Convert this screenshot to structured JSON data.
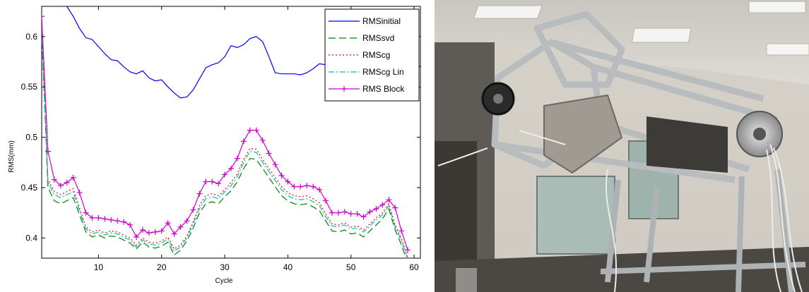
{
  "chart_data": {
    "type": "line",
    "xlabel": "Cycle",
    "ylabel": "RMS(mm)",
    "xlim": [
      1,
      61
    ],
    "ylim": [
      0.38,
      0.63
    ],
    "xticks": [
      10,
      20,
      30,
      40,
      50,
      60
    ],
    "yticks": [
      0.4,
      0.45,
      0.5,
      0.55,
      0.6
    ],
    "grid": false,
    "legend_position": "top-right",
    "series": [
      {
        "name": "RMSinitial",
        "color": "#0000ff",
        "dash": "solid",
        "marker": "none",
        "points": [
          [
            5,
            0.63
          ],
          [
            6,
            0.62
          ],
          [
            7,
            0.608
          ],
          [
            8,
            0.599
          ],
          [
            9,
            0.597
          ],
          [
            10,
            0.59
          ],
          [
            11,
            0.583
          ],
          [
            12,
            0.577
          ],
          [
            13,
            0.576
          ],
          [
            14,
            0.57
          ],
          [
            15,
            0.565
          ],
          [
            16,
            0.563
          ],
          [
            17,
            0.566
          ],
          [
            18,
            0.559
          ],
          [
            19,
            0.556
          ],
          [
            20,
            0.557
          ],
          [
            21,
            0.55
          ],
          [
            22,
            0.544
          ],
          [
            23,
            0.539
          ],
          [
            24,
            0.54
          ],
          [
            25,
            0.547
          ],
          [
            26,
            0.558
          ],
          [
            27,
            0.569
          ],
          [
            28,
            0.572
          ],
          [
            29,
            0.574
          ],
          [
            30,
            0.58
          ],
          [
            31,
            0.591
          ],
          [
            32,
            0.589
          ],
          [
            33,
            0.592
          ],
          [
            34,
            0.598
          ],
          [
            35,
            0.6
          ],
          [
            36,
            0.595
          ],
          [
            37,
            0.58
          ],
          [
            38,
            0.564
          ],
          [
            39,
            0.563
          ],
          [
            40,
            0.563
          ],
          [
            41,
            0.563
          ],
          [
            42,
            0.562
          ],
          [
            43,
            0.564
          ],
          [
            44,
            0.568
          ],
          [
            45,
            0.573
          ],
          [
            46,
            0.572
          ],
          [
            47,
            0.568
          ],
          [
            48,
            0.566
          ],
          [
            49,
            0.566
          ],
          [
            50,
            0.566
          ],
          [
            51,
            0.565
          ],
          [
            52,
            0.566
          ],
          [
            53,
            0.567
          ],
          [
            54,
            0.57
          ],
          [
            55,
            0.572
          ],
          [
            56,
            0.569
          ],
          [
            57,
            0.567
          ],
          [
            58,
            0.566
          ],
          [
            59,
            0.564
          ],
          [
            60,
            0.566
          ],
          [
            61,
            0.571
          ]
        ]
      },
      {
        "name": "RMSsvd",
        "color": "#008000",
        "dash": "dash",
        "marker": "none",
        "points": [
          [
            1,
            0.605
          ],
          [
            2,
            0.45
          ],
          [
            3,
            0.437
          ],
          [
            4,
            0.434
          ],
          [
            5,
            0.437
          ],
          [
            6,
            0.44
          ],
          [
            7,
            0.423
          ],
          [
            8,
            0.406
          ],
          [
            9,
            0.401
          ],
          [
            10,
            0.403
          ],
          [
            11,
            0.4
          ],
          [
            12,
            0.402
          ],
          [
            13,
            0.401
          ],
          [
            14,
            0.398
          ],
          [
            15,
            0.395
          ],
          [
            16,
            0.389
          ],
          [
            17,
            0.396
          ],
          [
            18,
            0.391
          ],
          [
            19,
            0.39
          ],
          [
            20,
            0.392
          ],
          [
            21,
            0.396
          ],
          [
            22,
            0.383
          ],
          [
            23,
            0.388
          ],
          [
            24,
            0.397
          ],
          [
            25,
            0.41
          ],
          [
            26,
            0.425
          ],
          [
            27,
            0.434
          ],
          [
            28,
            0.436
          ],
          [
            29,
            0.434
          ],
          [
            30,
            0.441
          ],
          [
            31,
            0.447
          ],
          [
            32,
            0.456
          ],
          [
            33,
            0.469
          ],
          [
            34,
            0.479
          ],
          [
            35,
            0.478
          ],
          [
            36,
            0.469
          ],
          [
            37,
            0.46
          ],
          [
            38,
            0.451
          ],
          [
            39,
            0.442
          ],
          [
            40,
            0.437
          ],
          [
            41,
            0.434
          ],
          [
            42,
            0.433
          ],
          [
            43,
            0.434
          ],
          [
            44,
            0.431
          ],
          [
            45,
            0.427
          ],
          [
            46,
            0.417
          ],
          [
            47,
            0.407
          ],
          [
            48,
            0.406
          ],
          [
            49,
            0.408
          ],
          [
            50,
            0.404
          ],
          [
            51,
            0.405
          ],
          [
            52,
            0.401
          ],
          [
            53,
            0.407
          ],
          [
            54,
            0.413
          ],
          [
            55,
            0.419
          ],
          [
            56,
            0.429
          ],
          [
            57,
            0.408
          ],
          [
            58,
            0.393
          ],
          [
            59,
            0.375
          ]
        ]
      },
      {
        "name": "RMScg",
        "color": "#ff0000",
        "dash": "dot",
        "marker": "none",
        "points": [
          [
            1,
            0.61
          ],
          [
            2,
            0.458
          ],
          [
            3,
            0.446
          ],
          [
            4,
            0.443
          ],
          [
            5,
            0.446
          ],
          [
            6,
            0.449
          ],
          [
            7,
            0.43
          ],
          [
            8,
            0.411
          ],
          [
            9,
            0.406
          ],
          [
            10,
            0.408
          ],
          [
            11,
            0.405
          ],
          [
            12,
            0.407
          ],
          [
            13,
            0.406
          ],
          [
            14,
            0.403
          ],
          [
            15,
            0.4
          ],
          [
            16,
            0.393
          ],
          [
            17,
            0.4
          ],
          [
            18,
            0.396
          ],
          [
            19,
            0.395
          ],
          [
            20,
            0.397
          ],
          [
            21,
            0.401
          ],
          [
            22,
            0.389
          ],
          [
            23,
            0.393
          ],
          [
            24,
            0.402
          ],
          [
            25,
            0.416
          ],
          [
            26,
            0.432
          ],
          [
            27,
            0.442
          ],
          [
            28,
            0.444
          ],
          [
            29,
            0.442
          ],
          [
            30,
            0.448
          ],
          [
            31,
            0.455
          ],
          [
            32,
            0.464
          ],
          [
            33,
            0.478
          ],
          [
            34,
            0.489
          ],
          [
            35,
            0.488
          ],
          [
            36,
            0.478
          ],
          [
            37,
            0.469
          ],
          [
            38,
            0.46
          ],
          [
            39,
            0.451
          ],
          [
            40,
            0.445
          ],
          [
            41,
            0.442
          ],
          [
            42,
            0.441
          ],
          [
            43,
            0.442
          ],
          [
            44,
            0.439
          ],
          [
            45,
            0.435
          ],
          [
            46,
            0.424
          ],
          [
            47,
            0.414
          ],
          [
            48,
            0.413
          ],
          [
            49,
            0.415
          ],
          [
            50,
            0.411
          ],
          [
            51,
            0.412
          ],
          [
            52,
            0.408
          ],
          [
            53,
            0.414
          ],
          [
            54,
            0.42
          ],
          [
            55,
            0.425
          ],
          [
            56,
            0.434
          ],
          [
            57,
            0.413
          ],
          [
            58,
            0.399
          ],
          [
            59,
            0.381
          ]
        ]
      },
      {
        "name": "RMScg Lin",
        "color": "#00bfbf",
        "dash": "dashdot",
        "marker": "none",
        "points": [
          [
            1,
            0.608
          ],
          [
            2,
            0.455
          ],
          [
            3,
            0.443
          ],
          [
            4,
            0.44
          ],
          [
            5,
            0.443
          ],
          [
            6,
            0.446
          ],
          [
            7,
            0.427
          ],
          [
            8,
            0.409
          ],
          [
            9,
            0.404
          ],
          [
            10,
            0.406
          ],
          [
            11,
            0.403
          ],
          [
            12,
            0.405
          ],
          [
            13,
            0.404
          ],
          [
            14,
            0.401
          ],
          [
            15,
            0.398
          ],
          [
            16,
            0.391
          ],
          [
            17,
            0.398
          ],
          [
            18,
            0.394
          ],
          [
            19,
            0.393
          ],
          [
            20,
            0.395
          ],
          [
            21,
            0.399
          ],
          [
            22,
            0.387
          ],
          [
            23,
            0.391
          ],
          [
            24,
            0.4
          ],
          [
            25,
            0.414
          ],
          [
            26,
            0.429
          ],
          [
            27,
            0.439
          ],
          [
            28,
            0.441
          ],
          [
            29,
            0.439
          ],
          [
            30,
            0.446
          ],
          [
            31,
            0.452
          ],
          [
            32,
            0.461
          ],
          [
            33,
            0.475
          ],
          [
            34,
            0.486
          ],
          [
            35,
            0.485
          ],
          [
            36,
            0.475
          ],
          [
            37,
            0.466
          ],
          [
            38,
            0.457
          ],
          [
            39,
            0.448
          ],
          [
            40,
            0.442
          ],
          [
            41,
            0.439
          ],
          [
            42,
            0.438
          ],
          [
            43,
            0.439
          ],
          [
            44,
            0.436
          ],
          [
            45,
            0.432
          ],
          [
            46,
            0.421
          ],
          [
            47,
            0.412
          ],
          [
            48,
            0.411
          ],
          [
            49,
            0.413
          ],
          [
            50,
            0.409
          ],
          [
            51,
            0.41
          ],
          [
            52,
            0.406
          ],
          [
            53,
            0.412
          ],
          [
            54,
            0.418
          ],
          [
            55,
            0.423
          ],
          [
            56,
            0.432
          ],
          [
            57,
            0.411
          ],
          [
            58,
            0.397
          ],
          [
            59,
            0.379
          ]
        ]
      },
      {
        "name": "RMS Block",
        "color": "#cc00cc",
        "dash": "solid",
        "marker": "plus",
        "points": [
          [
            1,
            0.62
          ],
          [
            2,
            0.486
          ],
          [
            3,
            0.458
          ],
          [
            4,
            0.452
          ],
          [
            5,
            0.455
          ],
          [
            6,
            0.46
          ],
          [
            7,
            0.445
          ],
          [
            8,
            0.425
          ],
          [
            9,
            0.42
          ],
          [
            10,
            0.42
          ],
          [
            11,
            0.419
          ],
          [
            12,
            0.418
          ],
          [
            13,
            0.417
          ],
          [
            14,
            0.416
          ],
          [
            15,
            0.413
          ],
          [
            16,
            0.401
          ],
          [
            17,
            0.408
          ],
          [
            18,
            0.405
          ],
          [
            19,
            0.406
          ],
          [
            20,
            0.407
          ],
          [
            21,
            0.415
          ],
          [
            22,
            0.404
          ],
          [
            23,
            0.411
          ],
          [
            24,
            0.417
          ],
          [
            25,
            0.428
          ],
          [
            26,
            0.444
          ],
          [
            27,
            0.456
          ],
          [
            28,
            0.456
          ],
          [
            29,
            0.454
          ],
          [
            30,
            0.463
          ],
          [
            31,
            0.469
          ],
          [
            32,
            0.479
          ],
          [
            33,
            0.496
          ],
          [
            34,
            0.507
          ],
          [
            35,
            0.507
          ],
          [
            36,
            0.497
          ],
          [
            37,
            0.484
          ],
          [
            38,
            0.473
          ],
          [
            39,
            0.462
          ],
          [
            40,
            0.456
          ],
          [
            41,
            0.451
          ],
          [
            42,
            0.451
          ],
          [
            43,
            0.452
          ],
          [
            44,
            0.451
          ],
          [
            45,
            0.448
          ],
          [
            46,
            0.437
          ],
          [
            47,
            0.425
          ],
          [
            48,
            0.425
          ],
          [
            49,
            0.426
          ],
          [
            50,
            0.424
          ],
          [
            51,
            0.424
          ],
          [
            52,
            0.421
          ],
          [
            53,
            0.426
          ],
          [
            54,
            0.429
          ],
          [
            55,
            0.433
          ],
          [
            56,
            0.438
          ],
          [
            57,
            0.43
          ],
          [
            58,
            0.407
          ],
          [
            59,
            0.388
          ]
        ]
      }
    ]
  },
  "photo": {
    "subject": "cable-driven-parallel-robot-photo"
  }
}
